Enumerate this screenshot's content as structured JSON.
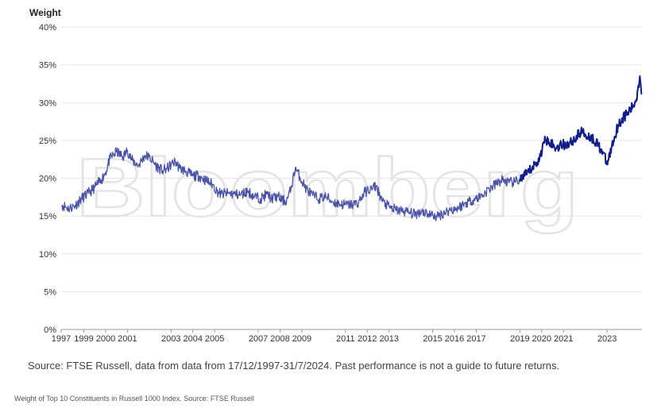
{
  "chart_data": {
    "type": "line",
    "title": "",
    "ylabel": "Weight",
    "xlabel": "",
    "ylim": [
      0,
      40
    ],
    "xlim": [
      1997.96,
      2024.6
    ],
    "y_ticks": [
      0,
      5,
      10,
      15,
      20,
      25,
      30,
      35,
      40
    ],
    "y_tick_labels": [
      "0%",
      "5%",
      "10%",
      "15%",
      "20%",
      "25%",
      "30%",
      "35%",
      "40%"
    ],
    "x_ticks": [
      1997,
      1999,
      2000,
      2001,
      2003,
      2004,
      2005,
      2007,
      2008,
      2009,
      2011,
      2012,
      2013,
      2015,
      2016,
      2017,
      2019,
      2020,
      2021,
      2023
    ],
    "x_tick_labels": [
      "1997",
      "1999",
      "2000",
      "2001",
      "2003",
      "2004",
      "2005",
      "2007",
      "2008",
      "2009",
      "2011",
      "2012",
      "2013",
      "2015",
      "2016",
      "2017",
      "2019",
      "2020",
      "2021",
      "2023"
    ],
    "grid": "horizontal",
    "watermark": "Bloomberg",
    "series": [
      {
        "color": "#4a52a8",
        "highlight_color": "#101e8c",
        "x": [
          1998.0,
          1998.3,
          1998.6,
          1998.9,
          1999.2,
          1999.5,
          1999.8,
          2000.0,
          2000.2,
          2000.5,
          2000.8,
          2001.0,
          2001.2,
          2001.5,
          2001.8,
          2002.0,
          2002.3,
          2002.6,
          2002.8,
          2003.0,
          2003.2,
          2003.4,
          2003.7,
          2004.0,
          2004.3,
          2004.6,
          2004.9,
          2005.1,
          2005.3,
          2005.6,
          2005.9,
          2006.2,
          2006.5,
          2006.8,
          2007.1,
          2007.4,
          2007.6,
          2007.9,
          2008.1,
          2008.3,
          2008.5,
          2008.7,
          2008.9,
          2009.2,
          2009.5,
          2009.8,
          2010.1,
          2010.4,
          2010.7,
          2011.0,
          2011.3,
          2011.6,
          2011.9,
          2012.2,
          2012.4,
          2012.7,
          2013.0,
          2013.3,
          2013.6,
          2013.9,
          2014.2,
          2014.5,
          2014.8,
          2015.0,
          2015.2,
          2015.5,
          2015.8,
          2016.1,
          2016.4,
          2016.7,
          2017.0,
          2017.3,
          2017.6,
          2017.9,
          2018.2,
          2018.5,
          2018.8,
          2019.0,
          2019.3,
          2019.6,
          2019.9,
          2020.1,
          2020.3,
          2020.6,
          2020.9,
          2021.2,
          2021.5,
          2021.8,
          2022.0,
          2022.3,
          2022.5,
          2022.8,
          2023.0,
          2023.2,
          2023.5,
          2023.8,
          2024.0,
          2024.2,
          2024.35,
          2024.5,
          2024.6
        ],
        "y": [
          16.5,
          16.0,
          16.4,
          17.3,
          18.0,
          18.8,
          19.8,
          20.8,
          22.6,
          23.5,
          22.8,
          23.7,
          22.4,
          21.7,
          23.0,
          22.8,
          21.7,
          21.0,
          21.2,
          21.8,
          22.2,
          21.3,
          20.9,
          20.3,
          20.3,
          19.7,
          19.2,
          18.3,
          17.9,
          18.0,
          17.9,
          17.8,
          18.3,
          17.6,
          17.3,
          17.9,
          17.3,
          17.6,
          17.1,
          17.0,
          18.6,
          21.4,
          20.2,
          18.6,
          17.7,
          17.3,
          17.6,
          16.9,
          16.6,
          16.5,
          16.5,
          16.8,
          18.2,
          18.6,
          19.0,
          16.9,
          16.2,
          15.8,
          15.7,
          15.5,
          15.2,
          15.7,
          15.3,
          15.1,
          14.9,
          15.4,
          15.8,
          16.0,
          16.5,
          17.0,
          17.3,
          17.8,
          18.6,
          19.2,
          19.8,
          19.4,
          19.5,
          19.8,
          20.5,
          21.5,
          22.5,
          24.8,
          25.2,
          24.0,
          24.4,
          24.5,
          25.1,
          26.2,
          25.8,
          25.3,
          24.8,
          23.5,
          21.8,
          24.0,
          27.0,
          28.2,
          28.8,
          29.5,
          30.5,
          33.5,
          31.2
        ]
      }
    ],
    "source_note": "Source: FTSE Russell, data from data from 17/12/1997-31/7/2024. Past performance is not a guide to future returns.",
    "caption": "Weight of Top 10 Constituents in Russell 1000 Index. Source: FTSE Russell"
  }
}
